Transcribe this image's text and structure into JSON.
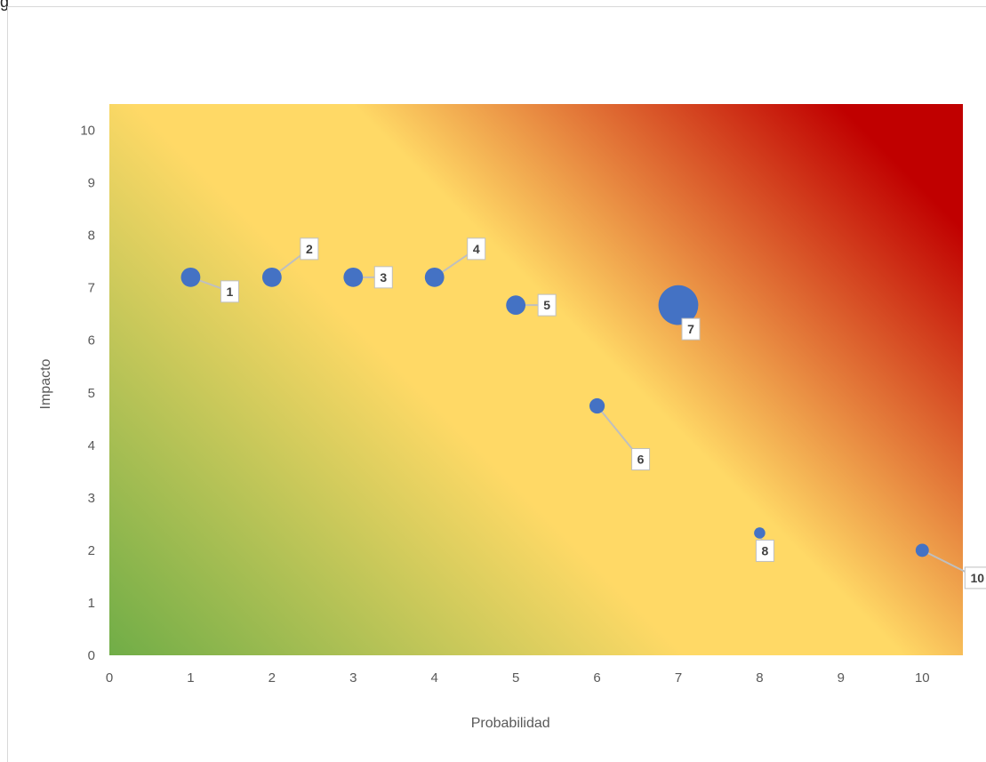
{
  "page": {
    "corner_text": "g"
  },
  "chart_data": {
    "type": "scatter",
    "title": "",
    "xlabel": "Probabilidad",
    "ylabel": "Impacto",
    "xlim": [
      0,
      10.5
    ],
    "ylim": [
      0,
      10.5
    ],
    "x_ticks": [
      0,
      1,
      2,
      3,
      4,
      5,
      6,
      7,
      8,
      9,
      10
    ],
    "y_ticks": [
      0,
      1,
      2,
      3,
      4,
      5,
      6,
      7,
      8,
      9,
      10
    ],
    "grid": false,
    "legend": "none",
    "background_gradient": [
      "#70ad47",
      "#ffd966",
      "#c00000"
    ],
    "marker_color": "#4472c4",
    "points": [
      {
        "label": "1",
        "x": 1,
        "y": 7.2,
        "size": 3
      },
      {
        "label": "2",
        "x": 2,
        "y": 7.2,
        "size": 3
      },
      {
        "label": "3",
        "x": 3,
        "y": 7.2,
        "size": 3
      },
      {
        "label": "4",
        "x": 4,
        "y": 7.2,
        "size": 3
      },
      {
        "label": "5",
        "x": 5,
        "y": 6.67,
        "size": 3
      },
      {
        "label": "6",
        "x": 6,
        "y": 4.75,
        "size": 2
      },
      {
        "label": "7",
        "x": 7,
        "y": 6.67,
        "size": 8
      },
      {
        "label": "8",
        "x": 8,
        "y": 2.33,
        "size": 1
      },
      {
        "label": "10",
        "x": 10,
        "y": 2.0,
        "size": 1.5
      }
    ]
  }
}
